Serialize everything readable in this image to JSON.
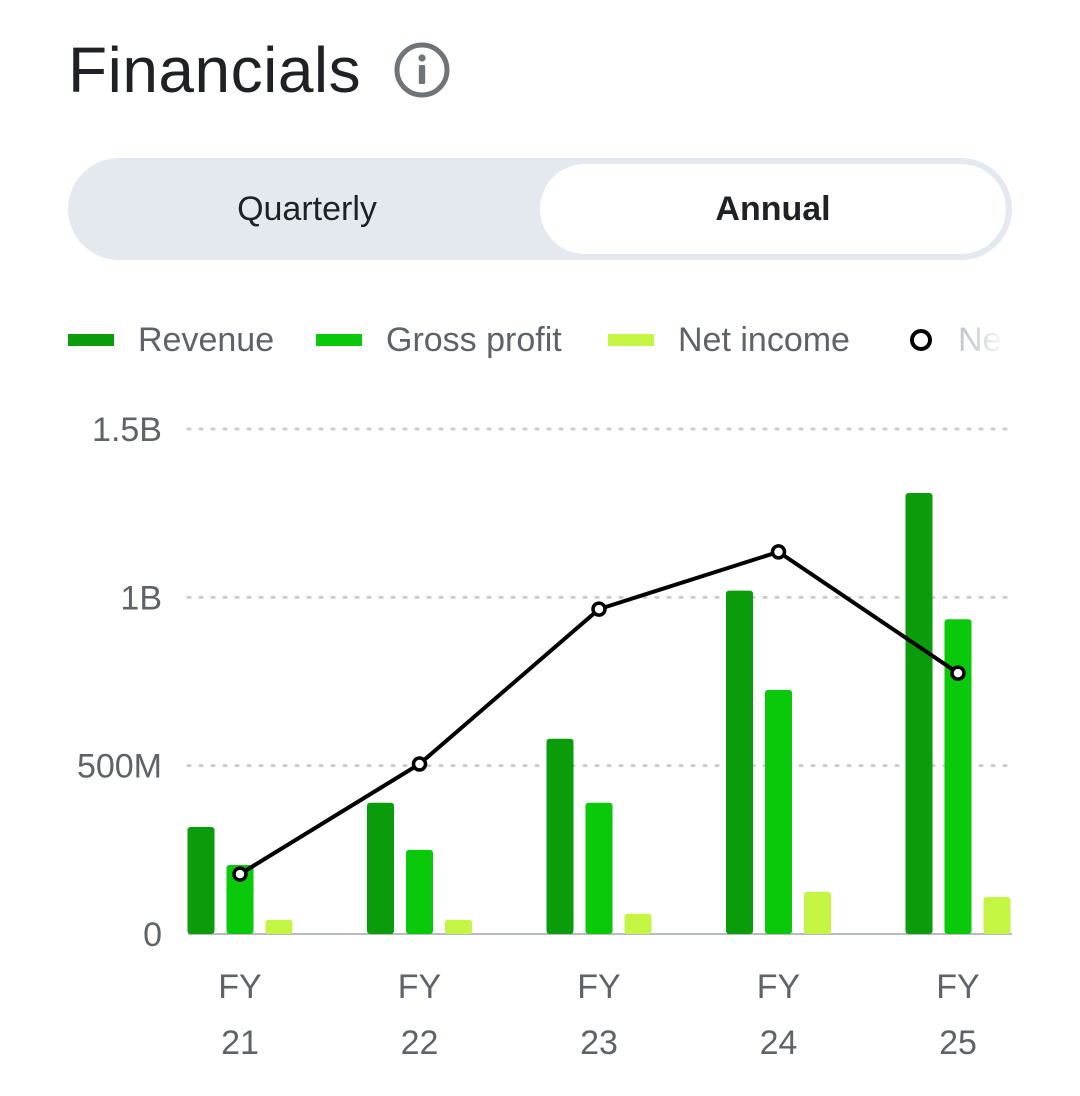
{
  "header": {
    "title": "Financials",
    "info_icon": "info-circle-icon"
  },
  "period_toggle": {
    "options": [
      "Quarterly",
      "Annual"
    ],
    "selected": "Annual"
  },
  "colors": {
    "revenue": "#0a9c0a",
    "gross_profit": "#0ac80a",
    "net_income": "#c4f542",
    "net_line": "#000000",
    "grid": "#c9cdd1",
    "axis_text": "#5f6368"
  },
  "legend": {
    "revenue": "Revenue",
    "gross_profit": "Gross profit",
    "net_income": "Net income",
    "net_line_partial": "Ne"
  },
  "chart_data": {
    "type": "bar",
    "categories": [
      [
        "FY",
        "21"
      ],
      [
        "FY",
        "22"
      ],
      [
        "FY",
        "23"
      ],
      [
        "FY",
        "24"
      ],
      [
        "FY",
        "25"
      ]
    ],
    "ylim": [
      0,
      1500000000
    ],
    "yticks": [
      {
        "value": 0,
        "label": "0"
      },
      {
        "value": 500000000,
        "label": "500M"
      },
      {
        "value": 1000000000,
        "label": "1B"
      },
      {
        "value": 1500000000,
        "label": "1.5B"
      }
    ],
    "grid": true,
    "legend_position": "top",
    "series": [
      {
        "name": "Revenue",
        "kind": "bar",
        "values": [
          318000000,
          390000000,
          580000000,
          1020000000,
          1310000000
        ]
      },
      {
        "name": "Gross profit",
        "kind": "bar",
        "values": [
          205000000,
          250000000,
          390000000,
          725000000,
          935000000
        ]
      },
      {
        "name": "Net income",
        "kind": "bar",
        "values": [
          42000000,
          42000000,
          60000000,
          125000000,
          110000000
        ]
      },
      {
        "name": "Ne",
        "kind": "line",
        "values": [
          178000000,
          505000000,
          965000000,
          1135000000,
          775000000
        ]
      }
    ]
  }
}
